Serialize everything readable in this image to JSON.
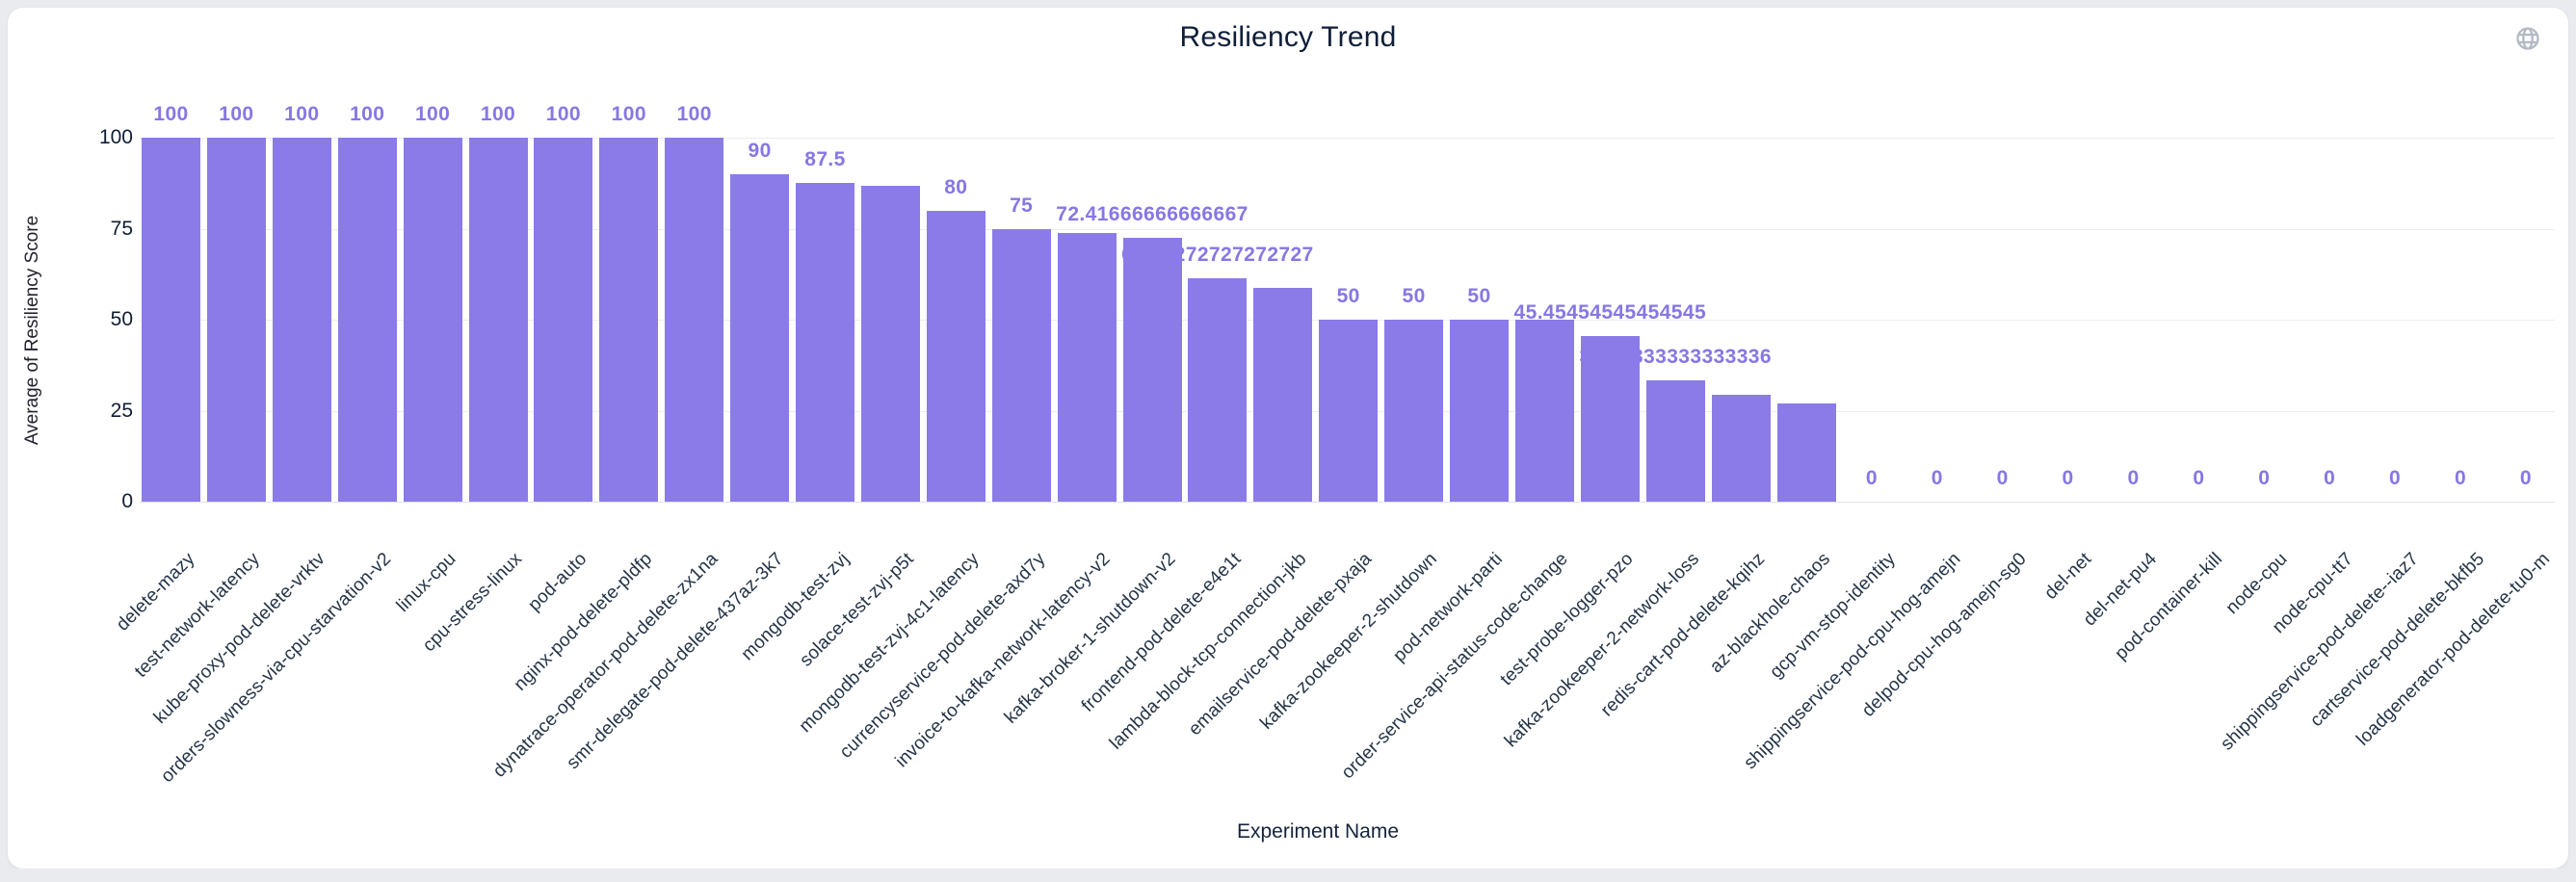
{
  "card": {
    "title": "Resiliency Trend",
    "x_axis_title": "Experiment Name",
    "y_axis_title": "Average of Resiliency Score"
  },
  "chart_data": {
    "type": "bar",
    "title": "Resiliency Trend",
    "xlabel": "Experiment Name",
    "ylabel": "Average of Resiliency Score",
    "ylim": [
      0,
      100
    ],
    "y_ticks": [
      0,
      25,
      50,
      75,
      100
    ],
    "grid": true,
    "legend": "none",
    "bar_color": "#8a7be9",
    "value_label_color": "#8677e4",
    "categories": [
      "delete-mazy",
      "test-network-latency",
      "kube-proxy-pod-delete-vrktv",
      "orders-slowness-via-cpu-starvation-v2",
      "linux-cpu",
      "cpu-stress-linux",
      "pod-auto",
      "nginx-pod-delete-pldfp",
      "dynatrace-operator-pod-delete-zx1na",
      "smr-delegate-pod-delete-437az-3k7",
      "mongodb-test-zvj",
      "solace-test-zvj-p5t",
      "mongodb-test-zvj-4c1-latency",
      "currencyservice-pod-delete-axd7y",
      "invoice-to-kafka-network-latency-v2",
      "kafka-broker-1-shutdown-v2",
      "frontend-pod-delete-e4e1t",
      "lambda-block-tcp-connection-jkb",
      "emailservice-pod-delete-pxaja",
      "kafka-zookeeper-2-shutdown",
      "pod-network-parti",
      "order-service-api-status-code-change",
      "test-probe-logger-pzo",
      "kafka-zookeeper-2-network-loss",
      "redis-cart-pod-delete-kqihz",
      "az-blackhole-chaos",
      "gcp-vm-stop-identity",
      "shippingservice-pod-cpu-hog-amejn",
      "delpod-cpu-hog-amejn-sg0",
      "del-net",
      "del-net-pu4",
      "pod-container-kill",
      "node-cpu",
      "node-cpu-tt7",
      "shippingservice-pod-delete--iaz7",
      "cartservice-pod-delete-bkfb5",
      "loadgenerator-pod-delete-tu0-m"
    ],
    "values": [
      100,
      100,
      100,
      100,
      100,
      100,
      100,
      100,
      100,
      90,
      87.5,
      86.8,
      80,
      75,
      73.8,
      72.41666666666667,
      61.27272727272727,
      58.7,
      50,
      50,
      50,
      50,
      45.45454545454545,
      33.33333333333336,
      29.3,
      26.9,
      0,
      0,
      0,
      0,
      0,
      0,
      0,
      0,
      0,
      0,
      0
    ],
    "bar_labels": [
      "100",
      "100",
      "100",
      "100",
      "100",
      "100",
      "100",
      "100",
      "100",
      "90",
      "87.5",
      "",
      "80",
      "75",
      "",
      "72.41666666666667",
      "61.27272727272727",
      "",
      "50",
      "50",
      "50",
      "",
      "45.45454545454545",
      "33.33333333333336",
      "",
      "",
      "0",
      "0",
      "0",
      "0",
      "0",
      "0",
      "0",
      "0",
      "0",
      "0",
      "0"
    ]
  }
}
